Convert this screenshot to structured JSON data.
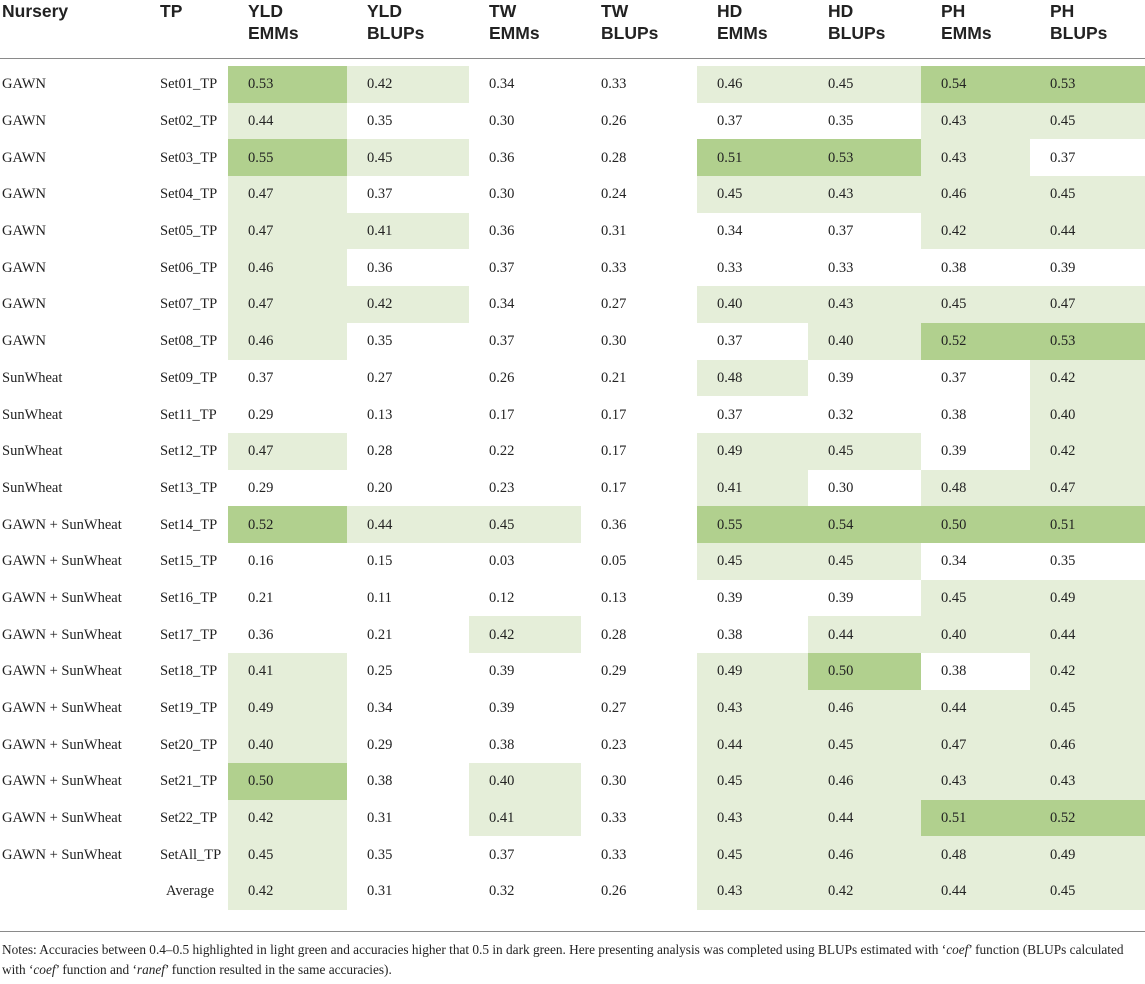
{
  "columns": [
    "Nursery",
    "TP",
    "YLD EMMs",
    "YLD BLUPs",
    "TW EMMs",
    "TW BLUPs",
    "HD EMMs",
    "HD BLUPs",
    "PH EMMs",
    "PH BLUPs"
  ],
  "header": [
    {
      "l1": "Nursery",
      "l2": ""
    },
    {
      "l1": "TP",
      "l2": ""
    },
    {
      "l1": "YLD",
      "l2": "EMMs"
    },
    {
      "l1": "YLD",
      "l2": "BLUPs"
    },
    {
      "l1": "TW",
      "l2": "EMMs"
    },
    {
      "l1": "TW",
      "l2": "BLUPs"
    },
    {
      "l1": "HD",
      "l2": "EMMs"
    },
    {
      "l1": "HD",
      "l2": "BLUPs"
    },
    {
      "l1": "PH",
      "l2": "EMMs"
    },
    {
      "l1": "PH",
      "l2": "BLUPs"
    }
  ],
  "rows": [
    {
      "nursery": "GAWN",
      "tp": "Set01_TP",
      "values": [
        "0.53",
        "0.42",
        "0.34",
        "0.33",
        "0.46",
        "0.45",
        "0.54",
        "0.53"
      ],
      "shade": [
        "d",
        "l",
        "",
        "",
        "l",
        "l",
        "d",
        "d"
      ]
    },
    {
      "nursery": "GAWN",
      "tp": "Set02_TP",
      "values": [
        "0.44",
        "0.35",
        "0.30",
        "0.26",
        "0.37",
        "0.35",
        "0.43",
        "0.45"
      ],
      "shade": [
        "l",
        "",
        "",
        "",
        "",
        "",
        "l",
        "l"
      ]
    },
    {
      "nursery": "GAWN",
      "tp": "Set03_TP",
      "values": [
        "0.55",
        "0.45",
        "0.36",
        "0.28",
        "0.51",
        "0.53",
        "0.43",
        "0.37"
      ],
      "shade": [
        "d",
        "l",
        "",
        "",
        "d",
        "d",
        "l",
        ""
      ]
    },
    {
      "nursery": "GAWN",
      "tp": "Set04_TP",
      "values": [
        "0.47",
        "0.37",
        "0.30",
        "0.24",
        "0.45",
        "0.43",
        "0.46",
        "0.45"
      ],
      "shade": [
        "l",
        "",
        "",
        "",
        "l",
        "l",
        "l",
        "l"
      ]
    },
    {
      "nursery": "GAWN",
      "tp": "Set05_TP",
      "values": [
        "0.47",
        "0.41",
        "0.36",
        "0.31",
        "0.34",
        "0.37",
        "0.42",
        "0.44"
      ],
      "shade": [
        "l",
        "l",
        "",
        "",
        "",
        "",
        "l",
        "l"
      ]
    },
    {
      "nursery": "GAWN",
      "tp": "Set06_TP",
      "values": [
        "0.46",
        "0.36",
        "0.37",
        "0.33",
        "0.33",
        "0.33",
        "0.38",
        "0.39"
      ],
      "shade": [
        "l",
        "",
        "",
        "",
        "",
        "",
        "",
        ""
      ]
    },
    {
      "nursery": "GAWN",
      "tp": "Set07_TP",
      "values": [
        "0.47",
        "0.42",
        "0.34",
        "0.27",
        "0.40",
        "0.43",
        "0.45",
        "0.47"
      ],
      "shade": [
        "l",
        "l",
        "",
        "",
        "l",
        "l",
        "l",
        "l"
      ]
    },
    {
      "nursery": "GAWN",
      "tp": "Set08_TP",
      "values": [
        "0.46",
        "0.35",
        "0.37",
        "0.30",
        "0.37",
        "0.40",
        "0.52",
        "0.53"
      ],
      "shade": [
        "l",
        "",
        "",
        "",
        "",
        "l",
        "d",
        "d"
      ]
    },
    {
      "nursery": "SunWheat",
      "tp": "Set09_TP",
      "values": [
        "0.37",
        "0.27",
        "0.26",
        "0.21",
        "0.48",
        "0.39",
        "0.37",
        "0.42"
      ],
      "shade": [
        "",
        "",
        "",
        "",
        "l",
        "",
        "",
        "l"
      ]
    },
    {
      "nursery": "SunWheat",
      "tp": "Set11_TP",
      "values": [
        "0.29",
        "0.13",
        "0.17",
        "0.17",
        "0.37",
        "0.32",
        "0.38",
        "0.40"
      ],
      "shade": [
        "",
        "",
        "",
        "",
        "",
        "",
        "",
        "l"
      ]
    },
    {
      "nursery": "SunWheat",
      "tp": "Set12_TP",
      "values": [
        "0.47",
        "0.28",
        "0.22",
        "0.17",
        "0.49",
        "0.45",
        "0.39",
        "0.42"
      ],
      "shade": [
        "l",
        "",
        "",
        "",
        "l",
        "l",
        "",
        "l"
      ]
    },
    {
      "nursery": "SunWheat",
      "tp": "Set13_TP",
      "values": [
        "0.29",
        "0.20",
        "0.23",
        "0.17",
        "0.41",
        "0.30",
        "0.48",
        "0.47"
      ],
      "shade": [
        "",
        "",
        "",
        "",
        "l",
        "",
        "l",
        "l"
      ]
    },
    {
      "nursery": "GAWN + SunWheat",
      "tp": "Set14_TP",
      "values": [
        "0.52",
        "0.44",
        "0.45",
        "0.36",
        "0.55",
        "0.54",
        "0.50",
        "0.51"
      ],
      "shade": [
        "d",
        "l",
        "l",
        "",
        "d",
        "d",
        "d",
        "d"
      ]
    },
    {
      "nursery": "GAWN + SunWheat",
      "tp": "Set15_TP",
      "values": [
        "0.16",
        "0.15",
        "0.03",
        "0.05",
        "0.45",
        "0.45",
        "0.34",
        "0.35"
      ],
      "shade": [
        "",
        "",
        "",
        "",
        "l",
        "l",
        "",
        ""
      ]
    },
    {
      "nursery": "GAWN + SunWheat",
      "tp": "Set16_TP",
      "values": [
        "0.21",
        "0.11",
        "0.12",
        "0.13",
        "0.39",
        "0.39",
        "0.45",
        "0.49"
      ],
      "shade": [
        "",
        "",
        "",
        "",
        "",
        "",
        "l",
        "l"
      ]
    },
    {
      "nursery": "GAWN + SunWheat",
      "tp": "Set17_TP",
      "values": [
        "0.36",
        "0.21",
        "0.42",
        "0.28",
        "0.38",
        "0.44",
        "0.40",
        "0.44"
      ],
      "shade": [
        "",
        "",
        "l",
        "",
        "",
        "l",
        "l",
        "l"
      ]
    },
    {
      "nursery": "GAWN + SunWheat",
      "tp": "Set18_TP",
      "values": [
        "0.41",
        "0.25",
        "0.39",
        "0.29",
        "0.49",
        "0.50",
        "0.38",
        "0.42"
      ],
      "shade": [
        "l",
        "",
        "",
        "",
        "l",
        "d",
        "",
        "l"
      ]
    },
    {
      "nursery": "GAWN + SunWheat",
      "tp": "Set19_TP",
      "values": [
        "0.49",
        "0.34",
        "0.39",
        "0.27",
        "0.43",
        "0.46",
        "0.44",
        "0.45"
      ],
      "shade": [
        "l",
        "",
        "",
        "",
        "l",
        "l",
        "l",
        "l"
      ]
    },
    {
      "nursery": "GAWN + SunWheat",
      "tp": "Set20_TP",
      "values": [
        "0.40",
        "0.29",
        "0.38",
        "0.23",
        "0.44",
        "0.45",
        "0.47",
        "0.46"
      ],
      "shade": [
        "l",
        "",
        "",
        "",
        "l",
        "l",
        "l",
        "l"
      ]
    },
    {
      "nursery": "GAWN + SunWheat",
      "tp": "Set21_TP",
      "values": [
        "0.50",
        "0.38",
        "0.40",
        "0.30",
        "0.45",
        "0.46",
        "0.43",
        "0.43"
      ],
      "shade": [
        "d",
        "",
        "l",
        "",
        "l",
        "l",
        "l",
        "l"
      ]
    },
    {
      "nursery": "GAWN + SunWheat",
      "tp": "Set22_TP",
      "values": [
        "0.42",
        "0.31",
        "0.41",
        "0.33",
        "0.43",
        "0.44",
        "0.51",
        "0.52"
      ],
      "shade": [
        "l",
        "",
        "l",
        "",
        "l",
        "l",
        "d",
        "d"
      ]
    },
    {
      "nursery": "GAWN + SunWheat",
      "tp": "SetAll_TP",
      "values": [
        "0.45",
        "0.35",
        "0.37",
        "0.33",
        "0.45",
        "0.46",
        "0.48",
        "0.49"
      ],
      "shade": [
        "l",
        "",
        "",
        "",
        "l",
        "l",
        "l",
        "l"
      ]
    },
    {
      "nursery": "",
      "tp": "",
      "label": "Average",
      "values": [
        "0.42",
        "0.31",
        "0.32",
        "0.26",
        "0.43",
        "0.42",
        "0.44",
        "0.45"
      ],
      "shade": [
        "l",
        "",
        "",
        "",
        "l",
        "l",
        "l",
        "l"
      ]
    }
  ],
  "notes": {
    "p1": "Notes: Accuracies between 0.4–0.5 highlighted in light green and accuracies higher that 0.5 in dark green. Here presenting analysis was completed using BLUPs estimated with ‘",
    "coef1": "coef",
    "p2": "’ function (BLUPs calculated with ‘",
    "coef2": "coef",
    "p3": "’ function and ‘",
    "ranef": "ranef",
    "p4": "’ function resulted in the same accuracies)."
  },
  "colors": {
    "light_green": "#e5eed9",
    "dark_green": "#b1d08e",
    "rule": "#8a8a8a"
  }
}
